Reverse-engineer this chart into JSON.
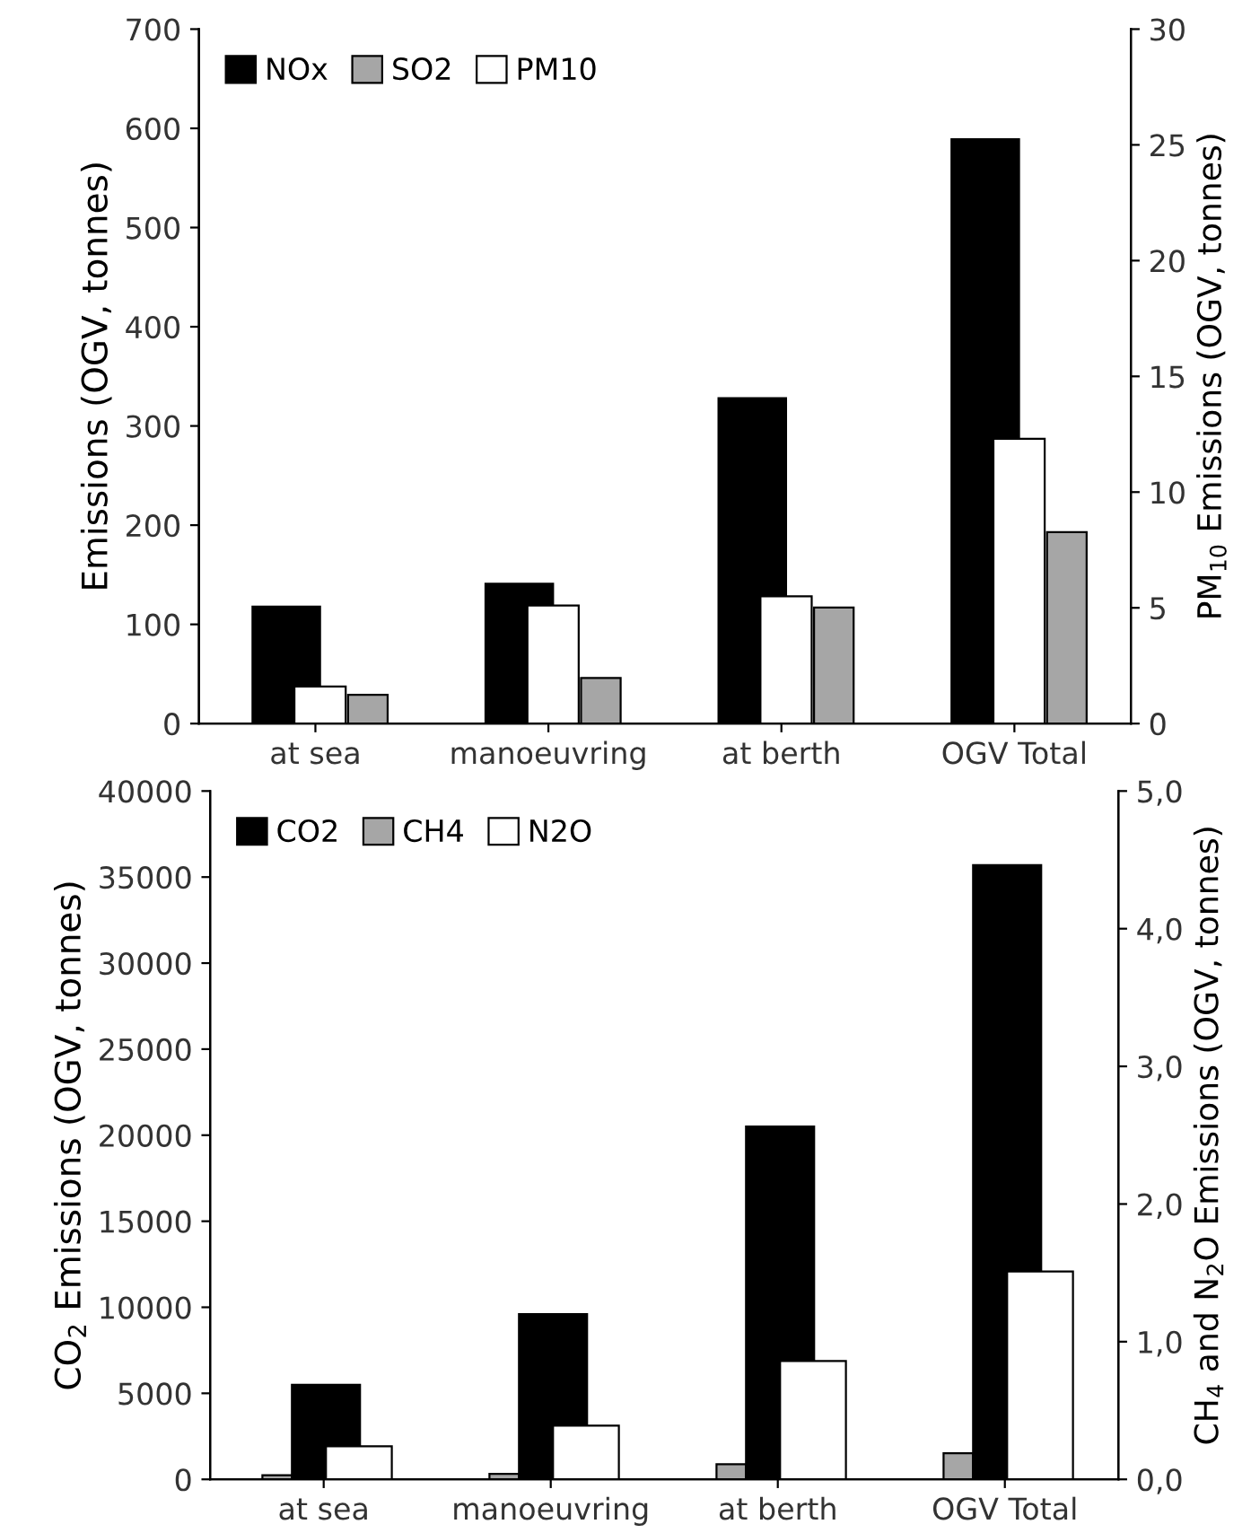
{
  "chart_data": [
    {
      "type": "bar",
      "ylabel": "Emissions (OGV, tonnes)",
      "y2label": "PM$_{10}$ Emissions (OGV, tonnes)",
      "categories": [
        "at sea",
        "manoeuvring",
        "at berth",
        "OGV Total"
      ],
      "series": [
        {
          "name": "NOx",
          "color": "#000000",
          "values": [
            118,
            141,
            328,
            589
          ]
        },
        {
          "name": "SO2",
          "color": "#a6a6a6",
          "values": [
            29,
            46,
            117,
            193
          ]
        },
        {
          "name": "PM10",
          "color": "#ffffff",
          "values": [
            1.6,
            5.1,
            5.5,
            12.3
          ],
          "axis": "y2"
        }
      ],
      "ylim": [
        0,
        700
      ],
      "yticks": [
        0,
        100,
        200,
        300,
        400,
        500,
        600,
        700
      ],
      "y2lim": [
        0,
        30
      ],
      "y2ticks": [
        0,
        5,
        10,
        15,
        20,
        25,
        30
      ],
      "legend": "top left",
      "grid": false
    },
    {
      "type": "bar",
      "ylabel": "CO$_{2}$ Emissions (OGV, tonnes)",
      "y2label": "CH$_{4}$ and N$_{2}$O Emissions (OGV, tonnes)",
      "categories": [
        "at sea",
        "manoeuvring",
        "at berth",
        "OGV Total"
      ],
      "series": [
        {
          "name": "CO2",
          "color": "#000000",
          "values": [
            5500,
            9600,
            20500,
            35700
          ]
        },
        {
          "name": "CH4",
          "color": "#a6a6a6",
          "values": [
            0.03,
            0.04,
            0.11,
            0.19
          ],
          "axis": "y2"
        },
        {
          "name": "N2O",
          "color": "#ffffff",
          "values": [
            0.24,
            0.39,
            0.86,
            1.51
          ],
          "axis": "y2"
        }
      ],
      "ylim": [
        0,
        40000
      ],
      "yticks": [
        0,
        5000,
        10000,
        15000,
        20000,
        25000,
        30000,
        35000,
        40000
      ],
      "y2lim": [
        0,
        5
      ],
      "y2ticks": [
        {
          "value": 0,
          "label": "0,0"
        },
        {
          "value": 1,
          "label": "1,0"
        },
        {
          "value": 2,
          "label": "2,0"
        },
        {
          "value": 3,
          "label": "3,0"
        },
        {
          "value": 4,
          "label": "4,0"
        },
        {
          "value": 5,
          "label": "5,0"
        }
      ],
      "legend": "top left",
      "grid": false
    }
  ]
}
